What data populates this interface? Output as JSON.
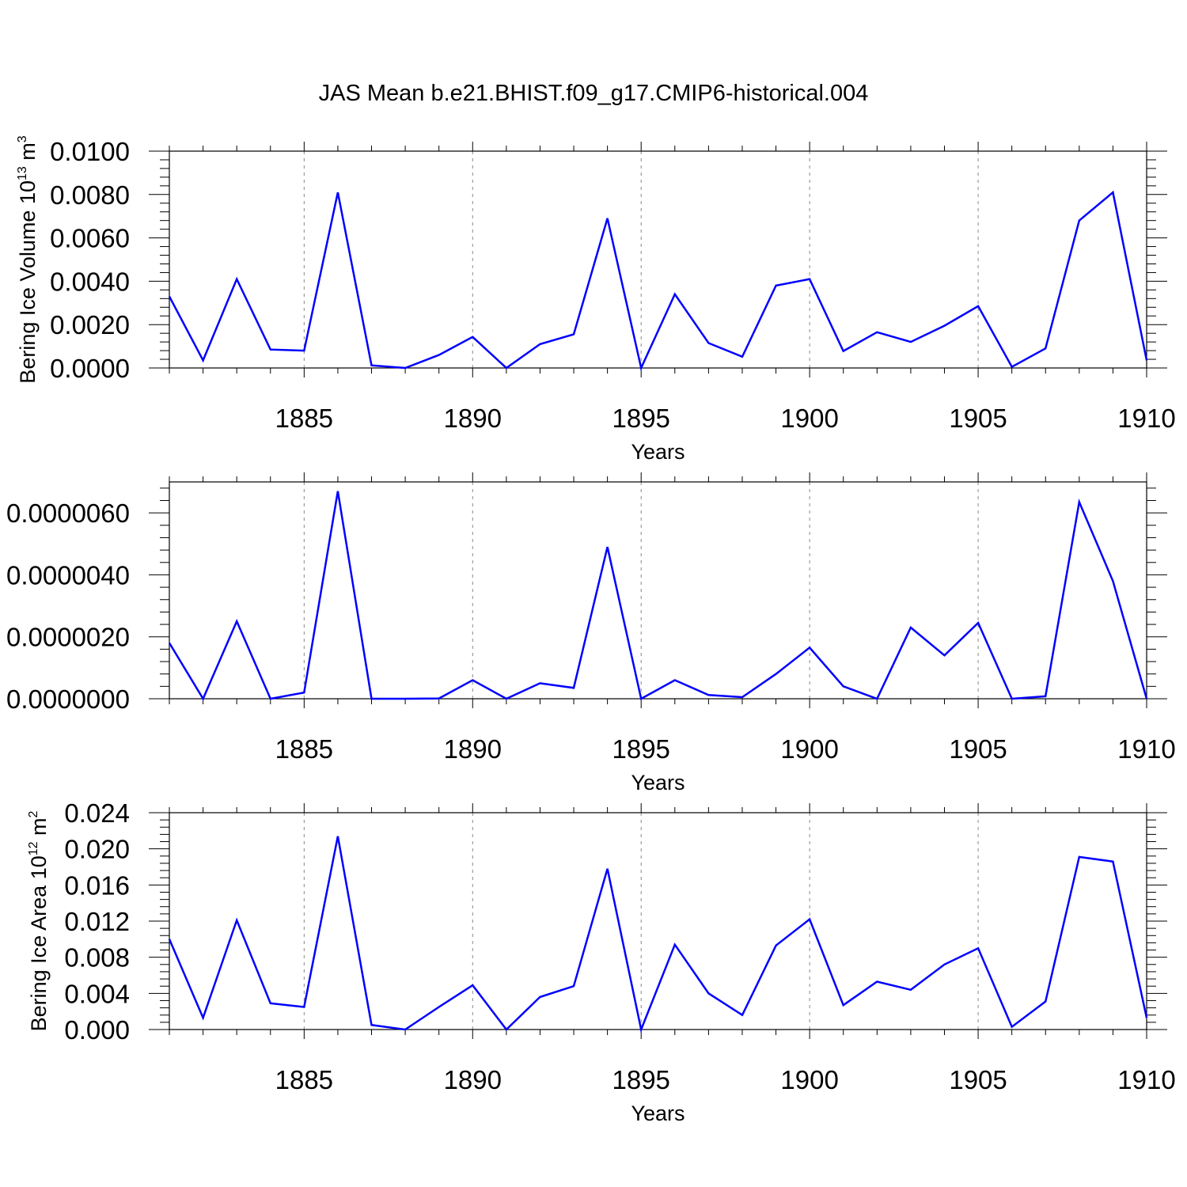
{
  "title": "JAS Mean b.e21.BHIST.f09_g17.CMIP6-historical.004",
  "colors": {
    "line": "#0000ff",
    "axis": "#000000",
    "grid": "#888888"
  },
  "chart_data": [
    {
      "type": "line",
      "title": "JAS Mean b.e21.BHIST.f09_g17.CMIP6-historical.004",
      "xlabel": "Years",
      "ylabel": {
        "text": "Bering Ice Volume 10",
        "sup": "13",
        "unit": " m",
        "unit_sup": "3"
      },
      "xlim": [
        1881,
        1910
      ],
      "ylim": [
        0,
        0.01
      ],
      "x_ticks": [
        "1885",
        "1890",
        "1895",
        "1900",
        "1905",
        "1910"
      ],
      "y_ticks": [
        "0.0000",
        "0.0020",
        "0.0040",
        "0.0060",
        "0.0080",
        "0.0100"
      ],
      "x_grid": "dashed vertical at major ticks",
      "x": [
        1881,
        1882,
        1883,
        1884,
        1885,
        1886,
        1887,
        1888,
        1889,
        1890,
        1891,
        1892,
        1893,
        1894,
        1895,
        1896,
        1897,
        1898,
        1899,
        1900,
        1901,
        1902,
        1903,
        1904,
        1905,
        1906,
        1907,
        1908,
        1909,
        1910
      ],
      "series": [
        {
          "values": [
            0.0033,
            0.00035,
            0.0041,
            0.00085,
            0.0008,
            0.0081,
            0.00012,
            0.0,
            0.0006,
            0.00143,
            0.0,
            0.0011,
            0.00155,
            0.0069,
            0.0,
            0.0034,
            0.00115,
            0.00052,
            0.0038,
            0.0041,
            0.00078,
            0.00165,
            0.0012,
            0.00195,
            0.00285,
            5e-05,
            0.0009,
            0.0068,
            0.0081,
            0.00035
          ]
        }
      ]
    },
    {
      "type": "line",
      "xlabel": "Years",
      "ylabel": null,
      "xlim": [
        1881,
        1910
      ],
      "ylim": [
        0,
        7e-06
      ],
      "x_ticks": [
        "1885",
        "1890",
        "1895",
        "1900",
        "1905",
        "1910"
      ],
      "y_ticks": [
        "0.0000000",
        "0.0000020",
        "0.0000040",
        "0.0000060"
      ],
      "x_grid": "dashed vertical at major ticks",
      "x": [
        1881,
        1882,
        1883,
        1884,
        1885,
        1886,
        1887,
        1888,
        1889,
        1890,
        1891,
        1892,
        1893,
        1894,
        1895,
        1896,
        1897,
        1898,
        1899,
        1900,
        1901,
        1902,
        1903,
        1904,
        1905,
        1906,
        1907,
        1908,
        1909,
        1910
      ],
      "series": [
        {
          "values": [
            1.8e-06,
            0.0,
            2.5e-06,
            0.0,
            2e-07,
            6.7e-06,
            0.0,
            0.0,
            1e-08,
            6e-07,
            0.0,
            5e-07,
            3.5e-07,
            4.9e-06,
            0.0,
            6e-07,
            1.2e-07,
            5e-08,
            8e-07,
            1.65e-06,
            4e-07,
            0.0,
            2.3e-06,
            1.4e-06,
            2.45e-06,
            0.0,
            8e-08,
            6.35e-06,
            3.8e-06,
            0.0
          ]
        }
      ]
    },
    {
      "type": "line",
      "xlabel": "Years",
      "ylabel": {
        "text": "Bering Ice Area 10",
        "sup": "12",
        "unit": " m",
        "unit_sup": "2"
      },
      "xlim": [
        1881,
        1910
      ],
      "ylim": [
        0,
        0.024
      ],
      "x_ticks": [
        "1885",
        "1890",
        "1895",
        "1900",
        "1905",
        "1910"
      ],
      "y_ticks": [
        "0.000",
        "0.004",
        "0.008",
        "0.012",
        "0.016",
        "0.020",
        "0.024"
      ],
      "x_grid": "dashed vertical at major ticks",
      "x": [
        1881,
        1882,
        1883,
        1884,
        1885,
        1886,
        1887,
        1888,
        1889,
        1890,
        1891,
        1892,
        1893,
        1894,
        1895,
        1896,
        1897,
        1898,
        1899,
        1900,
        1901,
        1902,
        1903,
        1904,
        1905,
        1906,
        1907,
        1908,
        1909,
        1910
      ],
      "series": [
        {
          "values": [
            0.01,
            0.0013,
            0.0121,
            0.0029,
            0.0025,
            0.0214,
            0.0005,
            0.0,
            0.0025,
            0.0049,
            0.0,
            0.0036,
            0.0048,
            0.0178,
            0.0,
            0.0094,
            0.004,
            0.0016,
            0.0093,
            0.0122,
            0.0027,
            0.0053,
            0.0044,
            0.0072,
            0.009,
            0.0003,
            0.0031,
            0.0191,
            0.0186,
            0.0013
          ]
        }
      ]
    }
  ]
}
